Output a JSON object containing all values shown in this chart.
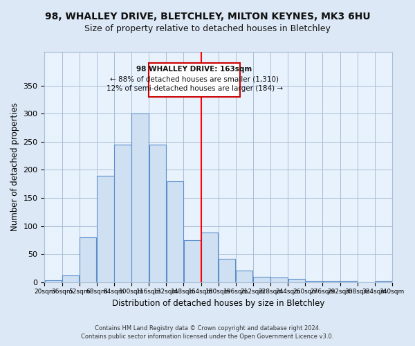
{
  "title": "98, WHALLEY DRIVE, BLETCHLEY, MILTON KEYNES, MK3 6HU",
  "subtitle": "Size of property relative to detached houses in Bletchley",
  "xlabel": "Distribution of detached houses by size in Bletchley",
  "ylabel": "Number of detached properties",
  "footer_line1": "Contains HM Land Registry data © Crown copyright and database right 2024.",
  "footer_line2": "Contains public sector information licensed under the Open Government Licence v3.0.",
  "annotation_title": "98 WHALLEY DRIVE: 163sqm",
  "annotation_line1": "← 88% of detached houses are smaller (1,310)",
  "annotation_line2": "12% of semi-detached houses are larger (184) →",
  "bar_edges": [
    20,
    36,
    52,
    68,
    84,
    100,
    116,
    132,
    148,
    164,
    180,
    196,
    212,
    228,
    244,
    260,
    276,
    292,
    308,
    324,
    340
  ],
  "bar_heights": [
    3,
    12,
    80,
    190,
    245,
    300,
    245,
    180,
    75,
    88,
    42,
    20,
    10,
    8,
    6,
    2,
    2,
    2,
    0,
    2
  ],
  "bar_color": "#cfe0f3",
  "bar_edge_color": "#5b8fc9",
  "red_line_x": 164,
  "ylim": [
    0,
    410
  ],
  "yticks": [
    0,
    50,
    100,
    150,
    200,
    250,
    300,
    350
  ],
  "bg_color": "#dce8f5",
  "plot_bg_color": "#e8f2fc",
  "grid_color": "#aabdd4",
  "title_fontsize": 10,
  "subtitle_fontsize": 9
}
